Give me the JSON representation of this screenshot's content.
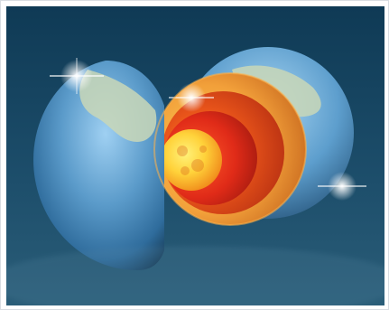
{
  "image": {
    "subject": "",
    "colors": {
      "background_top": "#0f3a55",
      "background_bottom": "#2a5d78",
      "ocean": "#4f8fc0",
      "land": "#c9d7b7",
      "crust": "#e58a2a",
      "mantle": "#d9481a",
      "outer_core": "#f06a18",
      "inner_core": "#ffd23a",
      "glow": "#ffffff"
    }
  }
}
